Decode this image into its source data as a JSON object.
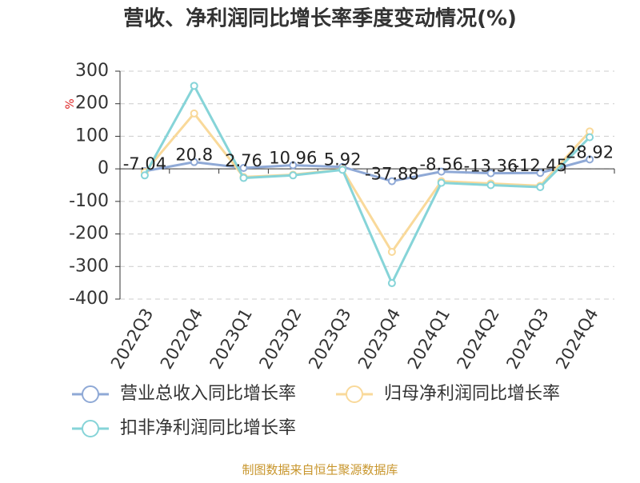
{
  "chart_data": {
    "type": "line",
    "title": "营收、净利润同比增长率季度变动情况(%)",
    "y_unit": "%",
    "source": "制图数据来自恒生聚源数据库",
    "categories": [
      "2022Q3",
      "2022Q4",
      "2023Q1",
      "2023Q2",
      "2023Q3",
      "2023Q4",
      "2024Q1",
      "2024Q2",
      "2024Q3",
      "2024Q4"
    ],
    "series": [
      {
        "name": "营业总收入同比增长率",
        "color": "#8fa9d6",
        "values": [
          -7.04,
          20.8,
          2.76,
          10.96,
          5.92,
          -37.88,
          -8.56,
          -13.36,
          -12.45,
          28.92
        ]
      },
      {
        "name": "归母净利润同比增长率",
        "color": "#f9d99a",
        "values": [
          -10,
          170,
          -25,
          -18,
          -2,
          -255,
          -38,
          -45,
          -52,
          115
        ]
      },
      {
        "name": "扣非净利润同比增长率",
        "color": "#86d4d8",
        "values": [
          -20,
          255,
          -28,
          -20,
          -3,
          -351,
          -43,
          -50,
          -56,
          97
        ]
      }
    ],
    "ylim": [
      -400,
      300
    ],
    "yticks": [
      -400,
      -300,
      -200,
      -100,
      0,
      100,
      200,
      300
    ],
    "grid": true,
    "data_labels_series": 0
  }
}
